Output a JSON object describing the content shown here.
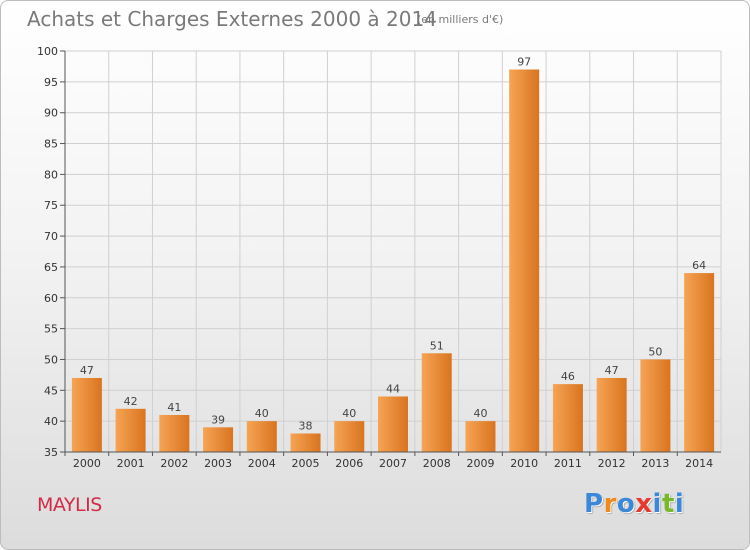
{
  "chart_data": {
    "type": "bar",
    "title": "Achats et Charges Externes 2000 à 2014",
    "subtitle": "(en milliers d'€)",
    "categories": [
      "2000",
      "2001",
      "2002",
      "2003",
      "2004",
      "2005",
      "2006",
      "2007",
      "2008",
      "2009",
      "2010",
      "2011",
      "2012",
      "2013",
      "2014"
    ],
    "values": [
      47,
      42,
      41,
      39,
      40,
      38,
      40,
      44,
      51,
      40,
      97,
      46,
      47,
      50,
      64
    ],
    "ylim": [
      35,
      100
    ],
    "yticks": [
      35,
      40,
      45,
      50,
      55,
      60,
      65,
      70,
      75,
      80,
      85,
      90,
      95,
      100
    ],
    "grid": true,
    "bar_color_light": "#f6a455",
    "bar_color_dark": "#d9741f"
  },
  "commune": "MAYLIS",
  "logo": {
    "letters": [
      "P",
      "r",
      "o",
      "x",
      "i",
      "t",
      "i"
    ],
    "colors": [
      "#3b88d8",
      "#f08a1c",
      "#3b88d8",
      "#e63a2e",
      "#3b88d8",
      "#78b82a",
      "#3b88d8"
    ]
  },
  "colors": {
    "title": "#7a7a7a",
    "commune": "#d42a45",
    "grid": "#d0d0d0"
  }
}
